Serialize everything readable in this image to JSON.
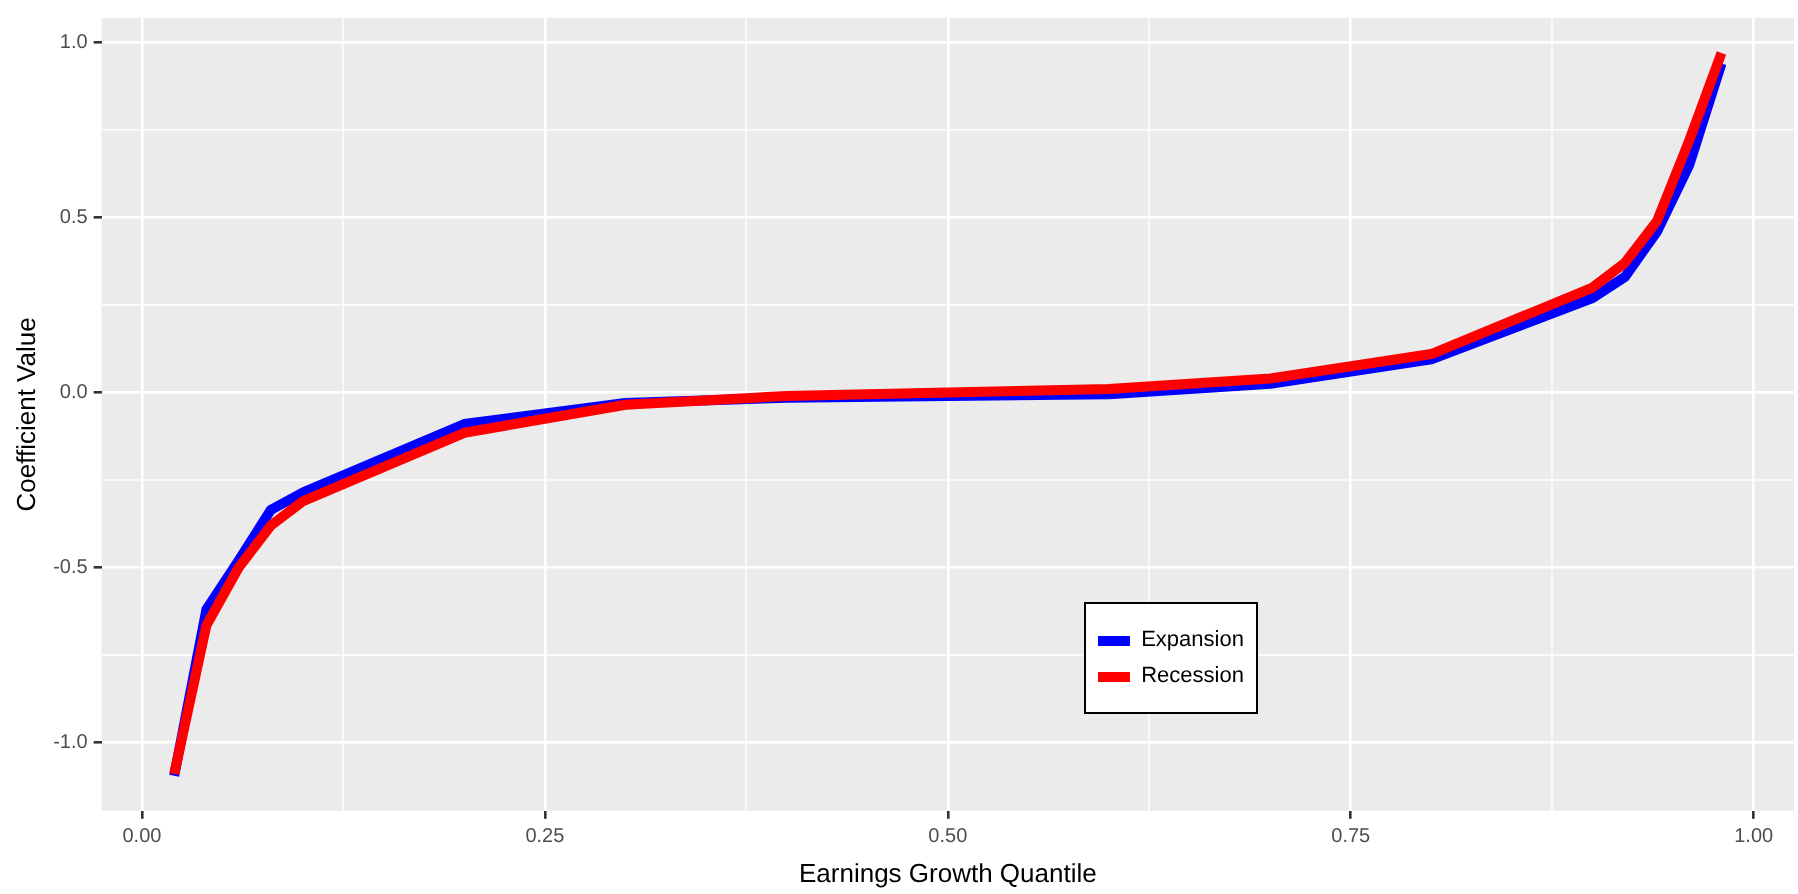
{
  "chart_data": {
    "type": "line",
    "xlabel": "Earnings Growth Quantile",
    "ylabel": "Coefficient Value",
    "x": [
      0.02,
      0.04,
      0.06,
      0.08,
      0.1,
      0.2,
      0.3,
      0.4,
      0.5,
      0.6,
      0.7,
      0.8,
      0.9,
      0.92,
      0.94,
      0.96,
      0.98
    ],
    "series": [
      {
        "name": "Expansion",
        "color": "#0000ff",
        "values": [
          -1.095,
          -0.62,
          -0.48,
          -0.335,
          -0.285,
          -0.09,
          -0.03,
          -0.015,
          -0.01,
          -0.005,
          0.025,
          0.095,
          0.27,
          0.33,
          0.46,
          0.65,
          0.94
        ]
      },
      {
        "name": "Recession",
        "color": "#ff0000",
        "values": [
          -1.09,
          -0.665,
          -0.5,
          -0.38,
          -0.31,
          -0.115,
          -0.035,
          -0.01,
          0.0,
          0.01,
          0.04,
          0.11,
          0.3,
          0.37,
          0.49,
          0.72,
          0.97
        ]
      }
    ],
    "xlim": [
      -0.025,
      1.025
    ],
    "ylim": [
      -1.195,
      1.07
    ],
    "xticks": [
      {
        "value": 0,
        "label": "0.00"
      },
      {
        "value": 0.125,
        "label": null
      },
      {
        "value": 0.25,
        "label": "0.25"
      },
      {
        "value": 0.375,
        "label": null
      },
      {
        "value": 0.5,
        "label": "0.50"
      },
      {
        "value": 0.625,
        "label": null
      },
      {
        "value": 0.75,
        "label": "0.75"
      },
      {
        "value": 0.875,
        "label": null
      },
      {
        "value": 1,
        "label": "1.00"
      }
    ],
    "yticks": [
      {
        "value": -1,
        "label": "-1.0"
      },
      {
        "value": -0.75,
        "label": null
      },
      {
        "value": -0.5,
        "label": "-0.5"
      },
      {
        "value": -0.25,
        "label": null
      },
      {
        "value": 0,
        "label": "0.0"
      },
      {
        "value": 0.25,
        "label": null
      },
      {
        "value": 0.5,
        "label": "0.5"
      },
      {
        "value": 0.75,
        "label": null
      },
      {
        "value": 1,
        "label": "1.0"
      }
    ],
    "grid": true,
    "legend": "bottom",
    "marker": "none",
    "line_style": "solid"
  }
}
